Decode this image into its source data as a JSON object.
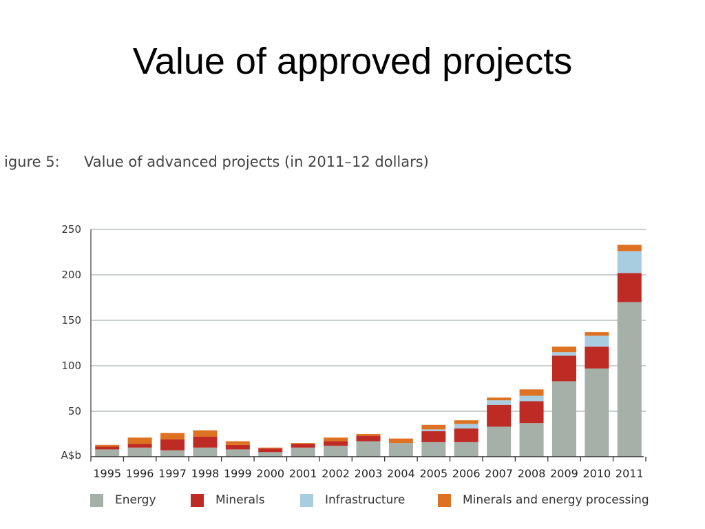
{
  "slide": {
    "title": "Value of approved projects"
  },
  "figure": {
    "label": "igure 5:",
    "caption": "Value of advanced projects (in 2011–12 dollars)"
  },
  "chart_data": {
    "type": "bar",
    "stacked": true,
    "title": "Value of advanced projects (in 2011–12 dollars)",
    "ylabel": "A$b",
    "ylim": [
      0,
      250
    ],
    "yticks": [
      50,
      100,
      150,
      200,
      250
    ],
    "grid": true,
    "legend_position": "bottom",
    "categories": [
      "1995",
      "1996",
      "1997",
      "1998",
      "1999",
      "2000",
      "2001",
      "2002",
      "2003",
      "2004",
      "2005",
      "2006",
      "2007",
      "2008",
      "2009",
      "2010",
      "2011"
    ],
    "series": [
      {
        "name": "Energy",
        "color": "#a5b0a8",
        "values": [
          8,
          10,
          7,
          10,
          8,
          5,
          10,
          12,
          17,
          15,
          16,
          16,
          33,
          37,
          83,
          97,
          170
        ]
      },
      {
        "name": "Minerals",
        "color": "#be2a24",
        "values": [
          3,
          4,
          12,
          12,
          5,
          4,
          4,
          5,
          6,
          0,
          12,
          15,
          24,
          24,
          28,
          24,
          32
        ]
      },
      {
        "name": "Infrastructure",
        "color": "#a8cce0",
        "values": [
          0,
          0,
          0,
          0,
          0,
          0,
          0,
          0,
          0,
          0,
          2,
          5,
          5,
          6,
          4,
          12,
          24
        ]
      },
      {
        "name": "Minerals and energy processing",
        "color": "#df7222",
        "values": [
          2,
          7,
          7,
          7,
          4,
          1,
          1,
          4,
          2,
          5,
          5,
          4,
          3,
          7,
          6,
          4,
          7
        ]
      }
    ]
  }
}
